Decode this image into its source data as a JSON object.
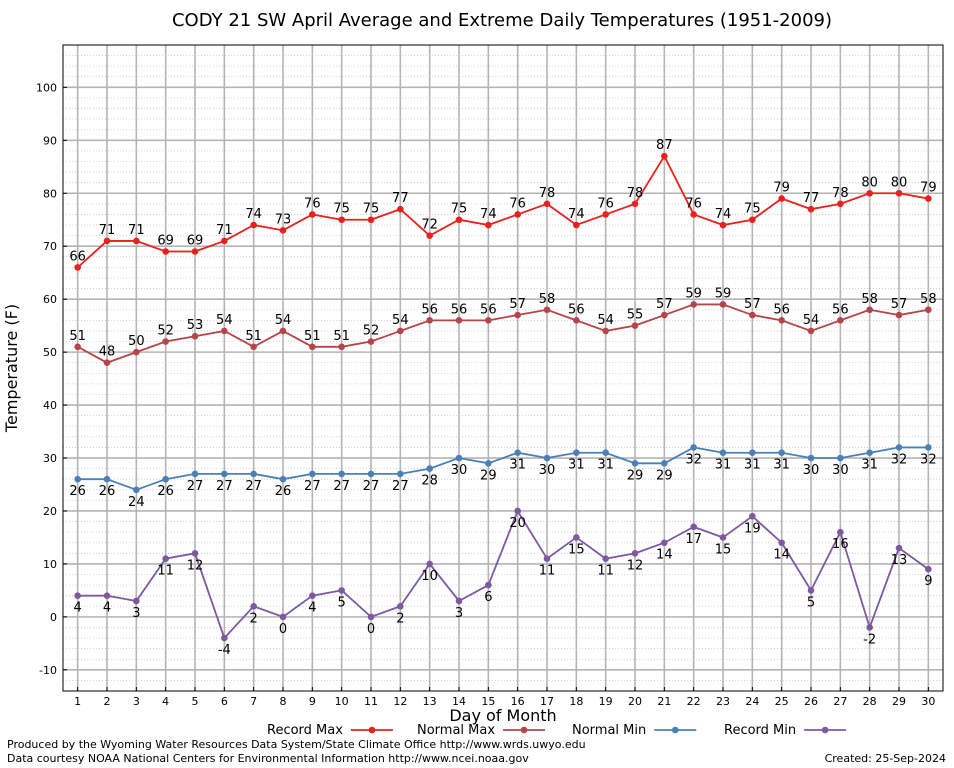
{
  "chart_data": {
    "type": "line",
    "title": "CODY 21 SW April Average and Extreme Daily Temperatures (1951-2009)",
    "xlabel": "Day of Month",
    "ylabel": "Temperature (F)",
    "x": [
      1,
      2,
      3,
      4,
      5,
      6,
      7,
      8,
      9,
      10,
      11,
      12,
      13,
      14,
      15,
      16,
      17,
      18,
      19,
      20,
      21,
      22,
      23,
      24,
      25,
      26,
      27,
      28,
      29,
      30
    ],
    "xlim": [
      0.5,
      30.5
    ],
    "ylim": [
      -14,
      108
    ],
    "yticks": [
      -10,
      0,
      10,
      20,
      30,
      40,
      50,
      60,
      70,
      80,
      90,
      100
    ],
    "grid": true,
    "legend_position": "bottom",
    "series": [
      {
        "name": "Record Max",
        "color": "#e8211d",
        "values": [
          66,
          71,
          71,
          69,
          69,
          71,
          74,
          73,
          76,
          75,
          75,
          77,
          72,
          75,
          74,
          76,
          78,
          74,
          76,
          78,
          87,
          76,
          74,
          75,
          79,
          77,
          78,
          80,
          80,
          79
        ]
      },
      {
        "name": "Normal Max",
        "color": "#b5454b",
        "values": [
          51,
          48,
          50,
          52,
          53,
          54,
          51,
          54,
          51,
          51,
          52,
          54,
          56,
          56,
          56,
          57,
          58,
          56,
          54,
          55,
          57,
          59,
          59,
          57,
          56,
          54,
          56,
          58,
          57,
          58
        ]
      },
      {
        "name": "Normal Min",
        "color": "#4a80b9",
        "values": [
          26,
          26,
          24,
          26,
          27,
          27,
          27,
          26,
          27,
          27,
          27,
          27,
          28,
          30,
          29,
          31,
          30,
          31,
          31,
          29,
          29,
          32,
          31,
          31,
          31,
          30,
          30,
          31,
          32,
          32
        ]
      },
      {
        "name": "Record Min",
        "color": "#7e59a0",
        "values": [
          4,
          4,
          3,
          11,
          12,
          -4,
          2,
          0,
          4,
          5,
          0,
          2,
          10,
          3,
          6,
          20,
          11,
          15,
          11,
          12,
          14,
          17,
          15,
          19,
          14,
          5,
          16,
          -2,
          13,
          9
        ]
      }
    ]
  },
  "footer": {
    "produced_by": "Produced by the Wyoming Water Resources Data System/State Climate Office http://www.wrds.uwyo.edu",
    "data_courtesy": "Data courtesy NOAA National Centers for Environmental Information http://www.ncei.noaa.gov",
    "created": "Created:  25-Sep-2024"
  }
}
